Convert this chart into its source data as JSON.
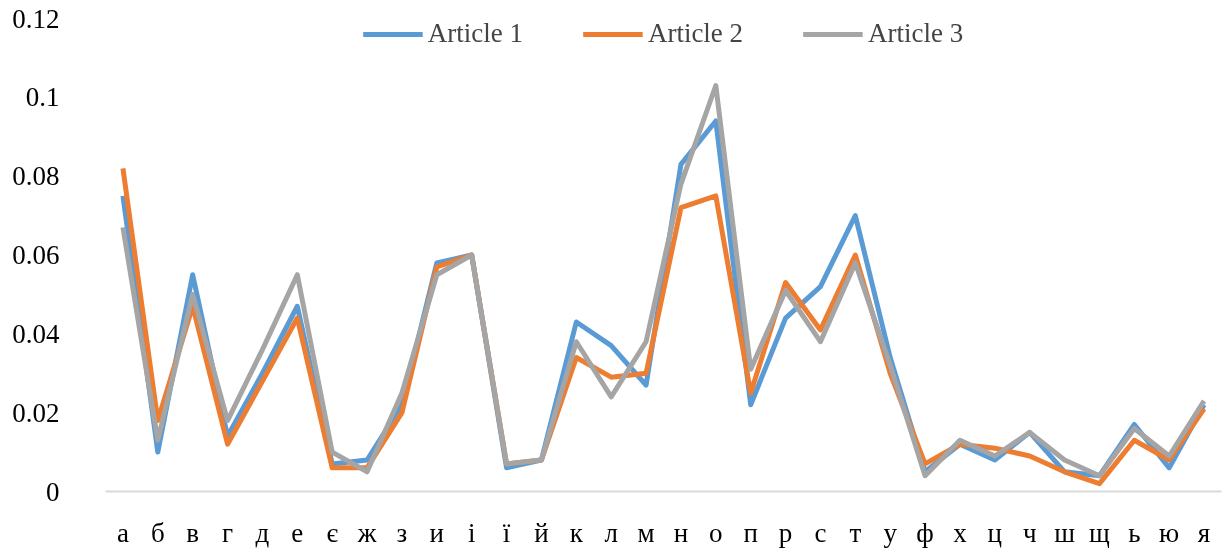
{
  "chart_data": {
    "type": "line",
    "categories": [
      "а",
      "б",
      "в",
      "г",
      "д",
      "е",
      "є",
      "ж",
      "з",
      "и",
      "і",
      "ї",
      "й",
      "к",
      "л",
      "м",
      "н",
      "о",
      "п",
      "р",
      "с",
      "т",
      "у",
      "ф",
      "х",
      "ц",
      "ч",
      "ш",
      "щ",
      "ь",
      "ю",
      "я"
    ],
    "series": [
      {
        "name": "Article 1",
        "color": "#5b9bd5",
        "values": [
          0.075,
          0.01,
          0.055,
          0.014,
          0.03,
          0.047,
          0.007,
          0.008,
          0.022,
          0.058,
          0.06,
          0.006,
          0.008,
          0.043,
          0.037,
          0.027,
          0.083,
          0.094,
          0.022,
          0.044,
          0.052,
          0.07,
          0.034,
          0.005,
          0.012,
          0.008,
          0.015,
          0.005,
          0.004,
          0.017,
          0.006,
          0.022
        ]
      },
      {
        "name": "Article 2",
        "color": "#ed7d31",
        "values": [
          0.082,
          0.018,
          0.047,
          0.012,
          0.028,
          0.044,
          0.006,
          0.006,
          0.02,
          0.057,
          0.06,
          0.007,
          0.008,
          0.034,
          0.029,
          0.03,
          0.072,
          0.075,
          0.025,
          0.053,
          0.041,
          0.06,
          0.03,
          0.007,
          0.012,
          0.011,
          0.009,
          0.005,
          0.002,
          0.013,
          0.008,
          0.021
        ]
      },
      {
        "name": "Article 3",
        "color": "#a5a5a5",
        "values": [
          0.067,
          0.013,
          0.05,
          0.018,
          0.036,
          0.055,
          0.01,
          0.005,
          0.025,
          0.055,
          0.06,
          0.007,
          0.008,
          0.038,
          0.024,
          0.038,
          0.078,
          0.103,
          0.031,
          0.051,
          0.038,
          0.058,
          0.032,
          0.004,
          0.013,
          0.009,
          0.015,
          0.008,
          0.004,
          0.016,
          0.009,
          0.023
        ]
      }
    ],
    "ylim": [
      0,
      0.12
    ],
    "yticks": [
      0,
      0.02,
      0.04,
      0.06,
      0.08,
      0.1,
      0.12
    ],
    "grid": false,
    "legend": "top",
    "line_style": "solid",
    "marker": "none"
  }
}
